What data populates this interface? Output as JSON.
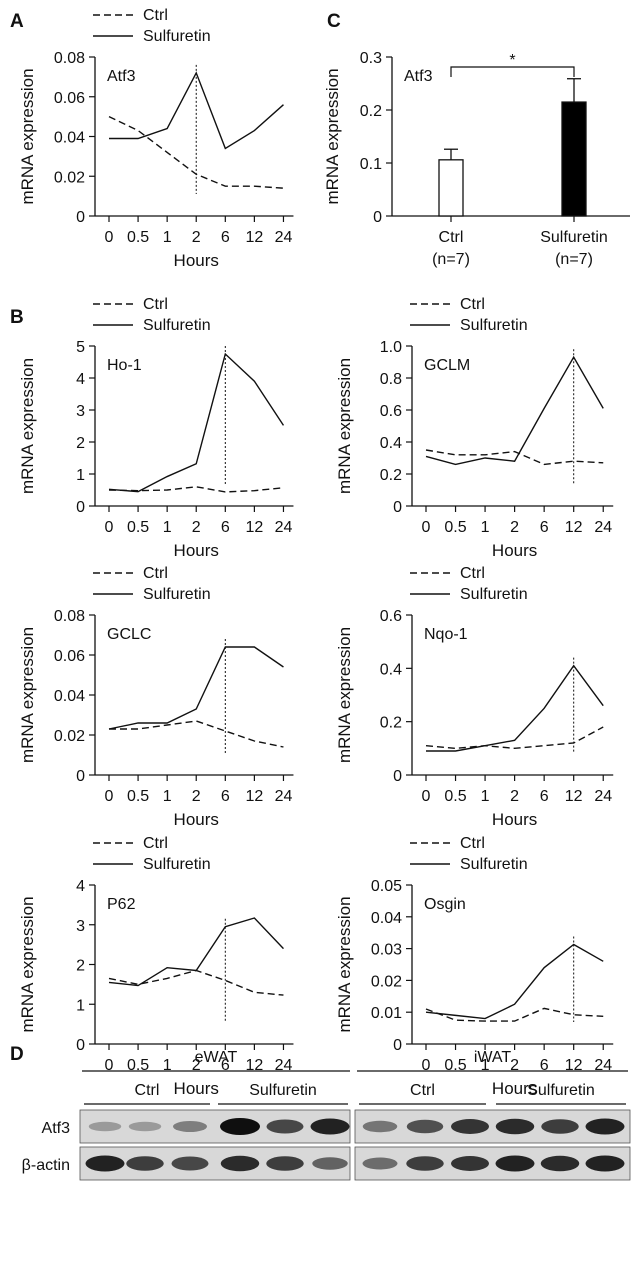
{
  "panels": {
    "A": "A",
    "B": "B",
    "C": "C",
    "D": "D"
  },
  "legend": {
    "ctrl": "Ctrl",
    "sulfuretin": "Sulfuretin"
  },
  "chart_data": [
    {
      "id": "atf3-time",
      "panel": "A",
      "type": "line",
      "gene": "Atf3",
      "categories": [
        "0",
        "0.5",
        "1",
        "2",
        "6",
        "12",
        "24"
      ],
      "xlabel": "Hours",
      "ylabel": "mRNA expression",
      "ylim": [
        0,
        0.08
      ],
      "yticks": [
        "0",
        "0.02",
        "0.04",
        "0.06",
        "0.08"
      ],
      "peak_index": 3,
      "series": [
        {
          "name": "Ctrl",
          "style": "dashed",
          "values": [
            0.05,
            0.043,
            0.032,
            0.021,
            0.015,
            0.015,
            0.014
          ]
        },
        {
          "name": "Sulfuretin",
          "style": "solid",
          "values": [
            0.039,
            0.039,
            0.044,
            0.072,
            0.034,
            0.043,
            0.056
          ]
        }
      ]
    },
    {
      "id": "atf3-bar",
      "panel": "C",
      "type": "bar",
      "gene": "Atf3",
      "categories": [
        [
          "Ctrl",
          "(n=7)"
        ],
        [
          "Sulfuretin",
          "(n=7)"
        ]
      ],
      "values": [
        0.106,
        0.215
      ],
      "errors": [
        0.02,
        0.044
      ],
      "colors": [
        "#ffffff",
        "#000000"
      ],
      "ylabel": "mRNA expression",
      "ylim": [
        0,
        0.3
      ],
      "yticks": [
        "0",
        "0.1",
        "0.2",
        "0.3"
      ],
      "significance": "*"
    },
    {
      "id": "ho1",
      "panel": "B",
      "type": "line",
      "gene": "Ho-1",
      "categories": [
        "0",
        "0.5",
        "1",
        "2",
        "6",
        "12",
        "24"
      ],
      "xlabel": "Hours",
      "ylabel": "mRNA expression",
      "ylim": [
        0,
        5
      ],
      "yticks": [
        "0",
        "1",
        "2",
        "3",
        "4",
        "5"
      ],
      "peak_index": 4,
      "series": [
        {
          "name": "Ctrl",
          "style": "dashed",
          "values": [
            0.5,
            0.48,
            0.5,
            0.6,
            0.44,
            0.48,
            0.57
          ]
        },
        {
          "name": "Sulfuretin",
          "style": "solid",
          "values": [
            0.52,
            0.45,
            0.92,
            1.32,
            4.75,
            3.9,
            2.52
          ]
        }
      ]
    },
    {
      "id": "gclm",
      "panel": "B",
      "type": "line",
      "gene": "GCLM",
      "categories": [
        "0",
        "0.5",
        "1",
        "2",
        "6",
        "12",
        "24"
      ],
      "xlabel": "Hours",
      "ylabel": "mRNA expression",
      "ylim": [
        0,
        1.0
      ],
      "yticks": [
        "0",
        "0.2",
        "0.4",
        "0.6",
        "0.8",
        "1.0"
      ],
      "peak_index": 5,
      "series": [
        {
          "name": "Ctrl",
          "style": "dashed",
          "values": [
            0.35,
            0.32,
            0.32,
            0.34,
            0.26,
            0.28,
            0.27
          ]
        },
        {
          "name": "Sulfuretin",
          "style": "solid",
          "values": [
            0.31,
            0.26,
            0.3,
            0.28,
            0.61,
            0.93,
            0.61
          ]
        }
      ]
    },
    {
      "id": "gclc",
      "panel": "B",
      "type": "line",
      "gene": "GCLC",
      "categories": [
        "0",
        "0.5",
        "1",
        "2",
        "6",
        "12",
        "24"
      ],
      "xlabel": "Hours",
      "ylabel": "mRNA expression",
      "ylim": [
        0,
        0.08
      ],
      "yticks": [
        "0",
        "0.02",
        "0.04",
        "0.06",
        "0.08"
      ],
      "peak_index": 4,
      "series": [
        {
          "name": "Ctrl",
          "style": "dashed",
          "values": [
            0.023,
            0.023,
            0.025,
            0.027,
            0.022,
            0.017,
            0.014
          ]
        },
        {
          "name": "Sulfuretin",
          "style": "solid",
          "values": [
            0.023,
            0.026,
            0.026,
            0.033,
            0.064,
            0.064,
            0.054
          ]
        }
      ]
    },
    {
      "id": "nqo1",
      "panel": "B",
      "type": "line",
      "gene": "Nqo-1",
      "categories": [
        "0",
        "0.5",
        "1",
        "2",
        "6",
        "12",
        "24"
      ],
      "xlabel": "Hours",
      "ylabel": "mRNA expression",
      "ylim": [
        0,
        0.6
      ],
      "yticks": [
        "0",
        "0.2",
        "0.4",
        "0.6"
      ],
      "peak_index": 5,
      "series": [
        {
          "name": "Ctrl",
          "style": "dashed",
          "values": [
            0.11,
            0.1,
            0.11,
            0.1,
            0.11,
            0.12,
            0.18
          ]
        },
        {
          "name": "Sulfuretin",
          "style": "solid",
          "values": [
            0.09,
            0.09,
            0.11,
            0.13,
            0.25,
            0.41,
            0.26
          ]
        }
      ]
    },
    {
      "id": "p62",
      "panel": "B",
      "type": "line",
      "gene": "P62",
      "categories": [
        "0",
        "0.5",
        "1",
        "2",
        "6",
        "12",
        "24"
      ],
      "xlabel": "Hours",
      "ylabel": "mRNA expression",
      "ylim": [
        0,
        4
      ],
      "yticks": [
        "0",
        "1",
        "2",
        "3",
        "4"
      ],
      "peak_index": 4,
      "series": [
        {
          "name": "Ctrl",
          "style": "dashed",
          "values": [
            1.65,
            1.5,
            1.65,
            1.85,
            1.6,
            1.3,
            1.23
          ]
        },
        {
          "name": "Sulfuretin",
          "style": "solid",
          "values": [
            1.55,
            1.47,
            1.92,
            1.85,
            2.95,
            3.17,
            2.4
          ]
        }
      ]
    },
    {
      "id": "osgin",
      "panel": "B",
      "type": "line",
      "gene": "Osgin",
      "categories": [
        "0",
        "0.5",
        "1",
        "2",
        "6",
        "12",
        "24"
      ],
      "xlabel": "Hours",
      "ylabel": "mRNA expression",
      "ylim": [
        0,
        0.05
      ],
      "yticks": [
        "0",
        "0.01",
        "0.02",
        "0.03",
        "0.04",
        "0.05"
      ],
      "peak_index": 5,
      "series": [
        {
          "name": "Ctrl",
          "style": "dashed",
          "values": [
            0.011,
            0.0075,
            0.0072,
            0.0072,
            0.0112,
            0.0092,
            0.0087
          ]
        },
        {
          "name": "Sulfuretin",
          "style": "solid",
          "values": [
            0.01,
            0.009,
            0.008,
            0.0125,
            0.024,
            0.0313,
            0.026
          ]
        }
      ]
    }
  ],
  "blot": {
    "tissues": [
      "eWAT",
      "iWAT"
    ],
    "groups": [
      "Ctrl",
      "Sulfuretin",
      "Ctrl",
      "Sulfuretin"
    ],
    "rows": [
      {
        "label": "Atf3",
        "intensity": [
          0.25,
          0.25,
          0.4,
          1.0,
          0.7,
          0.9,
          0.45,
          0.65,
          0.8,
          0.85,
          0.75,
          0.9
        ]
      },
      {
        "label": "β-actin",
        "intensity": [
          0.9,
          0.75,
          0.7,
          0.85,
          0.75,
          0.55,
          0.5,
          0.75,
          0.8,
          0.9,
          0.85,
          0.9
        ]
      }
    ]
  }
}
